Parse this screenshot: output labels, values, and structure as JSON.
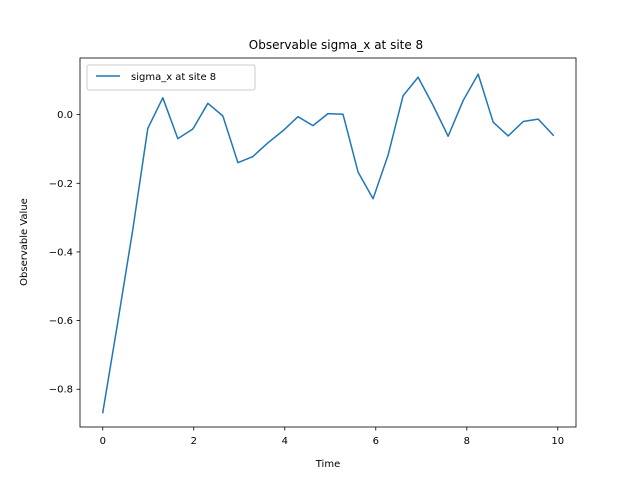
{
  "chart_data": {
    "type": "line",
    "title": "Observable sigma_x at site 8",
    "xlabel": "Time",
    "ylabel": "Observable Value",
    "xlim": [
      -0.5,
      10.4
    ],
    "ylim": [
      -0.91,
      0.165
    ],
    "xticks": [
      0,
      2,
      4,
      6,
      8,
      10
    ],
    "xtick_labels": [
      "0",
      "2",
      "4",
      "6",
      "8",
      "10"
    ],
    "yticks": [
      -0.8,
      -0.6,
      -0.4,
      -0.2,
      0.0
    ],
    "ytick_labels": [
      "−0.8",
      "−0.6",
      "−0.4",
      "−0.2",
      "0.0"
    ],
    "grid": false,
    "legend_position": "upper-left",
    "series": [
      {
        "name": "sigma_x at site 8",
        "color": "#1f77b4",
        "x": [
          0.0,
          0.33,
          0.66,
          0.99,
          1.32,
          1.65,
          1.98,
          2.31,
          2.64,
          2.97,
          3.3,
          3.63,
          3.96,
          4.29,
          4.62,
          4.95,
          5.28,
          5.61,
          5.94,
          6.27,
          6.6,
          6.93,
          7.26,
          7.59,
          7.92,
          8.25,
          8.58,
          8.91,
          9.24,
          9.57,
          9.9
        ],
        "y": [
          -0.868,
          -0.605,
          -0.335,
          -0.04,
          0.049,
          -0.07,
          -0.042,
          0.033,
          -0.004,
          -0.14,
          -0.122,
          -0.082,
          -0.047,
          -0.006,
          -0.032,
          0.003,
          0.001,
          -0.167,
          -0.245,
          -0.118,
          0.055,
          0.109,
          0.027,
          -0.063,
          0.041,
          0.118,
          -0.022,
          -0.062,
          -0.02,
          -0.013,
          -0.06
        ]
      }
    ]
  }
}
